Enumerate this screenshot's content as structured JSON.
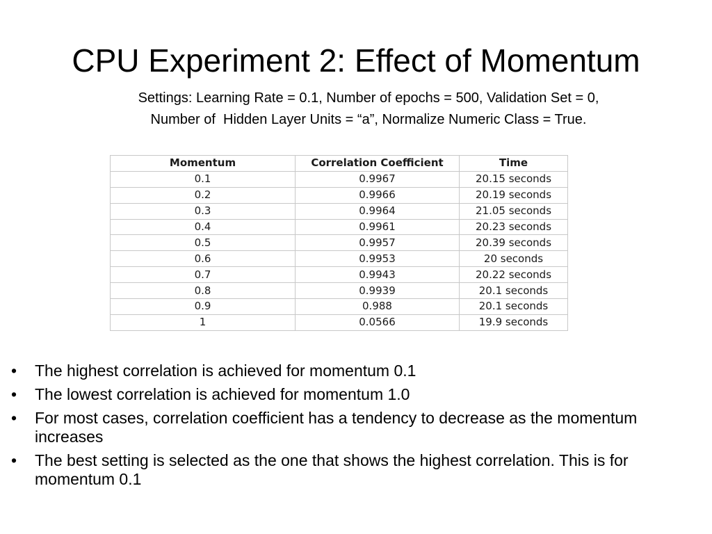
{
  "slide": {
    "title": "CPU Experiment 2: Effect of Momentum",
    "settings_lines": [
      "Settings: Learning Rate = 0.1, Number of epochs = 500, Validation Set = 0,",
      "Number of  Hidden Layer Units = “a”, Normalize Numeric Class = True."
    ]
  },
  "table": {
    "headers": [
      "Momentum",
      "Correlation Coefficient",
      "Time"
    ],
    "rows": [
      [
        "0.1",
        "0.9967",
        "20.15 seconds"
      ],
      [
        "0.2",
        "0.9966",
        "20.19 seconds"
      ],
      [
        "0.3",
        "0.9964",
        "21.05 seconds"
      ],
      [
        "0.4",
        "0.9961",
        "20.23 seconds"
      ],
      [
        "0.5",
        "0.9957",
        "20.39 seconds"
      ],
      [
        "0.6",
        "0.9953",
        "20 seconds"
      ],
      [
        "0.7",
        "0.9943",
        "20.22 seconds"
      ],
      [
        "0.8",
        "0.9939",
        "20.1 seconds"
      ],
      [
        "0.9",
        "0.988",
        "20.1 seconds"
      ],
      [
        "1",
        "0.0566",
        "19.9 seconds"
      ]
    ]
  },
  "bullets": [
    "The highest correlation is achieved for momentum 0.1",
    "The lowest correlation is achieved for momentum 1.0",
    "For most cases, correlation coefficient has a tendency to decrease as the momentum increases",
    "The best setting is selected as the one that shows the highest correlation. This is for momentum 0.1"
  ],
  "bullet_symbol": "•"
}
